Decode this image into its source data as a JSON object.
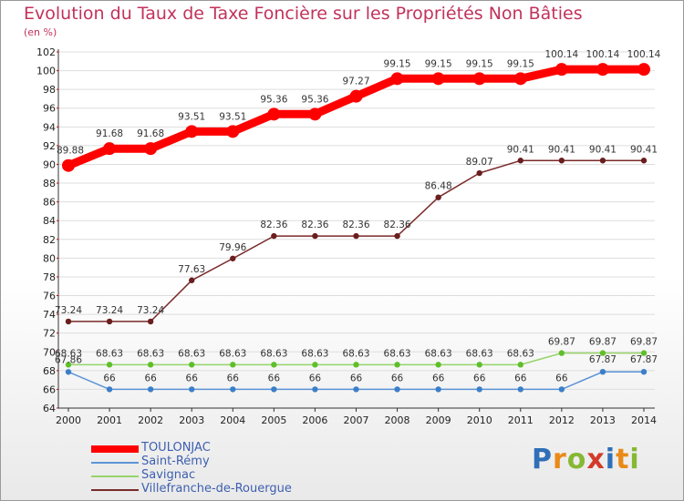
{
  "header": {
    "title": "Evolution du Taux de Taxe Foncière sur les Propriétés Non Bâties",
    "unit": "(en %)"
  },
  "logo": {
    "text": "Proxiti",
    "letters": [
      {
        "ch": "P",
        "color": "#2f6fb8"
      },
      {
        "ch": "r",
        "color": "#e98a18"
      },
      {
        "ch": "o",
        "color": "#86b833"
      },
      {
        "ch": "x",
        "color": "#d33a2a"
      },
      {
        "ch": "i",
        "color": "#2f6fb8"
      },
      {
        "ch": "t",
        "color": "#e98a18"
      },
      {
        "ch": "i",
        "color": "#86b833"
      }
    ]
  },
  "chart_data": {
    "type": "line",
    "title": "Evolution du Taux de Taxe Foncière sur les Propriétés Non Bâties",
    "ylabel": "(en %)",
    "xlabel": "",
    "categories": [
      "2000",
      "2001",
      "2002",
      "2003",
      "2004",
      "2005",
      "2006",
      "2007",
      "2008",
      "2009",
      "2010",
      "2011",
      "2012",
      "2013",
      "2014"
    ],
    "ylim": [
      64,
      102
    ],
    "yticks": [
      64,
      66,
      68,
      70,
      72,
      74,
      76,
      78,
      80,
      82,
      84,
      86,
      88,
      90,
      92,
      94,
      96,
      98,
      100,
      102
    ],
    "legend_position": "bottom-left",
    "series": [
      {
        "name": "TOULONJAC",
        "color": "#ff0000",
        "emphasis": true,
        "values": [
          89.88,
          91.68,
          91.68,
          93.51,
          93.51,
          95.36,
          95.36,
          97.27,
          99.15,
          99.15,
          99.15,
          99.15,
          100.14,
          100.14,
          100.14
        ],
        "labels": [
          "89.88",
          "91.68",
          "91.68",
          "93.51",
          "93.51",
          "95.36",
          "95.36",
          "97.27",
          "99.15",
          "99.15",
          "99.15",
          "99.15",
          "100.14",
          "100.14",
          "100.14"
        ]
      },
      {
        "name": "Saint-Rémy",
        "color": "#5b94d6",
        "point_color": "#3c7fc8",
        "values": [
          67.86,
          66,
          66,
          66,
          66,
          66,
          66,
          66,
          66,
          66,
          66,
          66,
          66,
          67.87,
          67.87
        ],
        "labels": [
          "67.86",
          "66",
          "66",
          "66",
          "66",
          "66",
          "66",
          "66",
          "66",
          "66",
          "66",
          "66",
          "66",
          "67.87",
          "67.87"
        ]
      },
      {
        "name": "Savignac",
        "color": "#96d46a",
        "point_color": "#5fbf2a",
        "values": [
          68.63,
          68.63,
          68.63,
          68.63,
          68.63,
          68.63,
          68.63,
          68.63,
          68.63,
          68.63,
          68.63,
          68.63,
          69.87,
          69.87,
          69.87
        ],
        "labels": [
          "68.63",
          "68.63",
          "68.63",
          "68.63",
          "68.63",
          "68.63",
          "68.63",
          "68.63",
          "68.63",
          "68.63",
          "68.63",
          "68.63",
          "69.87",
          "69.87",
          "69.87"
        ]
      },
      {
        "name": "Villefranche-de-Rouergue",
        "color": "#7a2a2a",
        "point_color": "#6a1e1e",
        "values": [
          73.24,
          73.24,
          73.24,
          77.63,
          79.96,
          82.36,
          82.36,
          82.36,
          82.36,
          86.48,
          89.07,
          90.41,
          90.41,
          90.41,
          90.41
        ],
        "labels": [
          "73.24",
          "73.24",
          "73.24",
          "77.63",
          "79.96",
          "82.36",
          "82.36",
          "82.36",
          "82.36",
          "86.48",
          "89.07",
          "90.41",
          "90.41",
          "90.41",
          "90.41"
        ]
      }
    ]
  }
}
